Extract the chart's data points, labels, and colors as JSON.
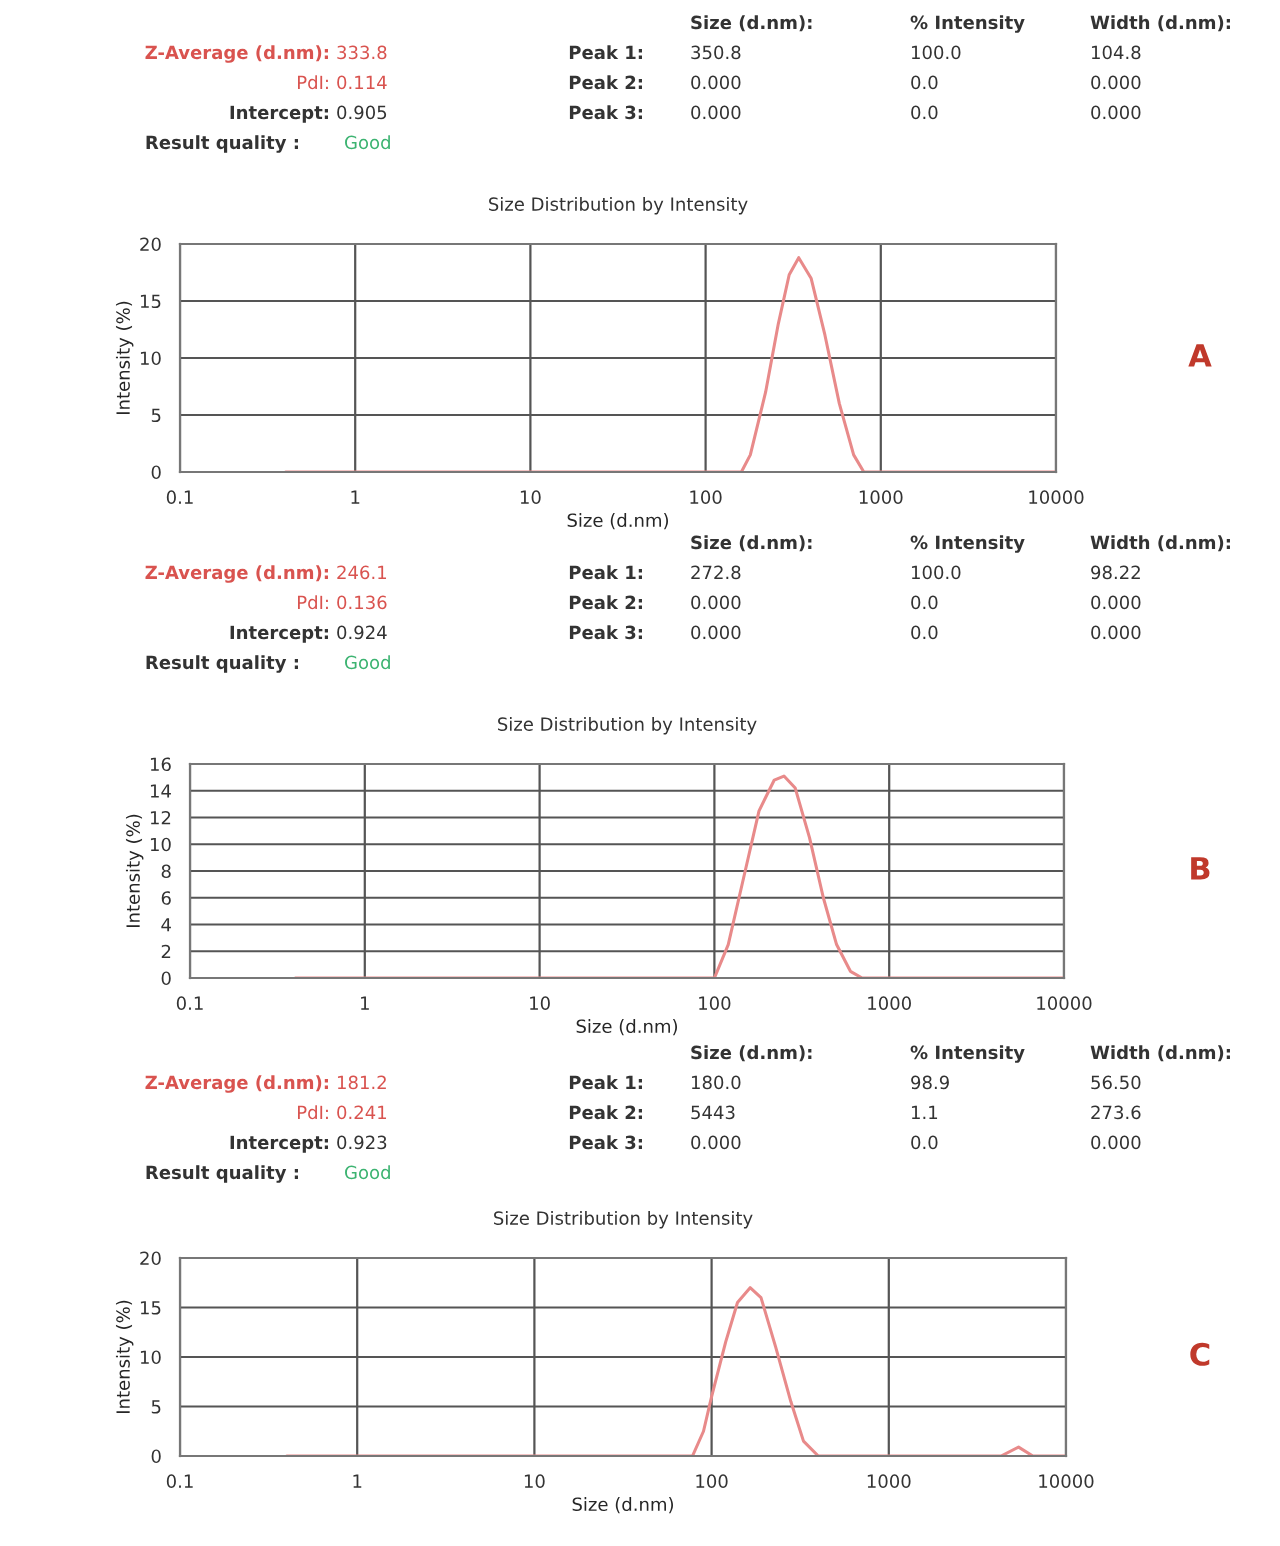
{
  "chart_data": [
    {
      "type": "line",
      "title": "Size Distribution by Intensity",
      "xlabel": "Size (d.nm)",
      "ylabel": "Intensity (%)",
      "log": "x",
      "grid": true,
      "marker": "none",
      "line_style": "solid",
      "xlim": [
        0.1,
        10000
      ],
      "xticks": [
        0.1,
        1,
        10,
        100,
        1000,
        10000
      ],
      "ylim": [
        0,
        20
      ],
      "yticks": [
        0,
        5,
        10,
        15,
        20
      ],
      "x": [
        0.4,
        100,
        160,
        180,
        220,
        260,
        300,
        340,
        400,
        480,
        580,
        700,
        800,
        10000
      ],
      "series": [
        {
          "color": "#e88a8a",
          "values": [
            0,
            0,
            0,
            1.5,
            7,
            13,
            17.3,
            18.8,
            17,
            12,
            6,
            1.5,
            0,
            0
          ]
        }
      ],
      "annotations": [
        "Z-Average (d.nm):",
        "333.8",
        "PdI:",
        "0.114",
        "Intercept:",
        "0.905",
        "Result quality :",
        "Good",
        "Size (d.nm):",
        "% Intensity",
        "Width (d.nm):",
        "Peak 1:",
        "350.8",
        "100.0",
        "104.8",
        "Peak 2:",
        "0.000",
        "0.0",
        "0.000",
        "Peak 3:",
        "0.000",
        "0.0",
        "0.000",
        "A"
      ]
    },
    {
      "type": "line",
      "title": "Size Distribution by Intensity",
      "xlabel": "Size (d.nm)",
      "ylabel": "Intensity (%)",
      "log": "x",
      "grid": true,
      "marker": "none",
      "line_style": "solid",
      "xlim": [
        0.1,
        10000
      ],
      "xticks": [
        0.1,
        1,
        10,
        100,
        1000,
        10000
      ],
      "ylim": [
        0,
        16
      ],
      "yticks": [
        0,
        2,
        4,
        6,
        8,
        10,
        12,
        14,
        16
      ],
      "x": [
        0.4,
        100,
        120,
        150,
        180,
        220,
        250,
        290,
        350,
        420,
        500,
        600,
        700,
        10000
      ],
      "series": [
        {
          "color": "#e88a8a",
          "values": [
            0,
            0,
            2.5,
            8,
            12.5,
            14.8,
            15.1,
            14.2,
            10.5,
            6,
            2.5,
            0.5,
            0,
            0
          ]
        }
      ],
      "annotations": [
        "Z-Average (d.nm):",
        "246.1",
        "PdI:",
        "0.136",
        "Intercept:",
        "0.924",
        "Result quality :",
        "Good",
        "Size (d.nm):",
        "% Intensity",
        "Width (d.nm):",
        "Peak 1:",
        "272.8",
        "100.0",
        "98.22",
        "Peak 2:",
        "0.000",
        "0.0",
        "0.000",
        "Peak 3:",
        "0.000",
        "0.0",
        "0.000",
        "B"
      ]
    },
    {
      "type": "line",
      "title": "Size Distribution by Intensity",
      "xlabel": "Size (d.nm)",
      "ylabel": "Intensity (%)",
      "log": "x",
      "grid": true,
      "marker": "none",
      "line_style": "solid",
      "xlim": [
        0.1,
        10000
      ],
      "xticks": [
        0.1,
        1,
        10,
        100,
        1000,
        10000
      ],
      "ylim": [
        0,
        20
      ],
      "yticks": [
        0,
        5,
        10,
        15,
        20
      ],
      "x": [
        0.4,
        78,
        90,
        100,
        120,
        140,
        165,
        190,
        230,
        280,
        330,
        400,
        4300,
        5400,
        6500,
        10000
      ],
      "series": [
        {
          "color": "#e88a8a",
          "values": [
            0,
            0,
            2.5,
            6,
            11.5,
            15.5,
            17,
            16,
            11,
            5.5,
            1.5,
            0,
            0,
            0.9,
            0,
            0
          ]
        }
      ],
      "annotations": [
        "Z-Average (d.nm):",
        "181.2",
        "PdI:",
        "0.241",
        "Intercept:",
        "0.923",
        "Result quality :",
        "Good",
        "Size (d.nm):",
        "% Intensity",
        "Width (d.nm):",
        "Peak 1:",
        "180.0",
        "98.9",
        "56.50",
        "Peak 2:",
        "5443",
        "1.1",
        "273.6",
        "Peak 3:",
        "0.000",
        "0.0",
        "0.000",
        "C"
      ]
    }
  ]
}
